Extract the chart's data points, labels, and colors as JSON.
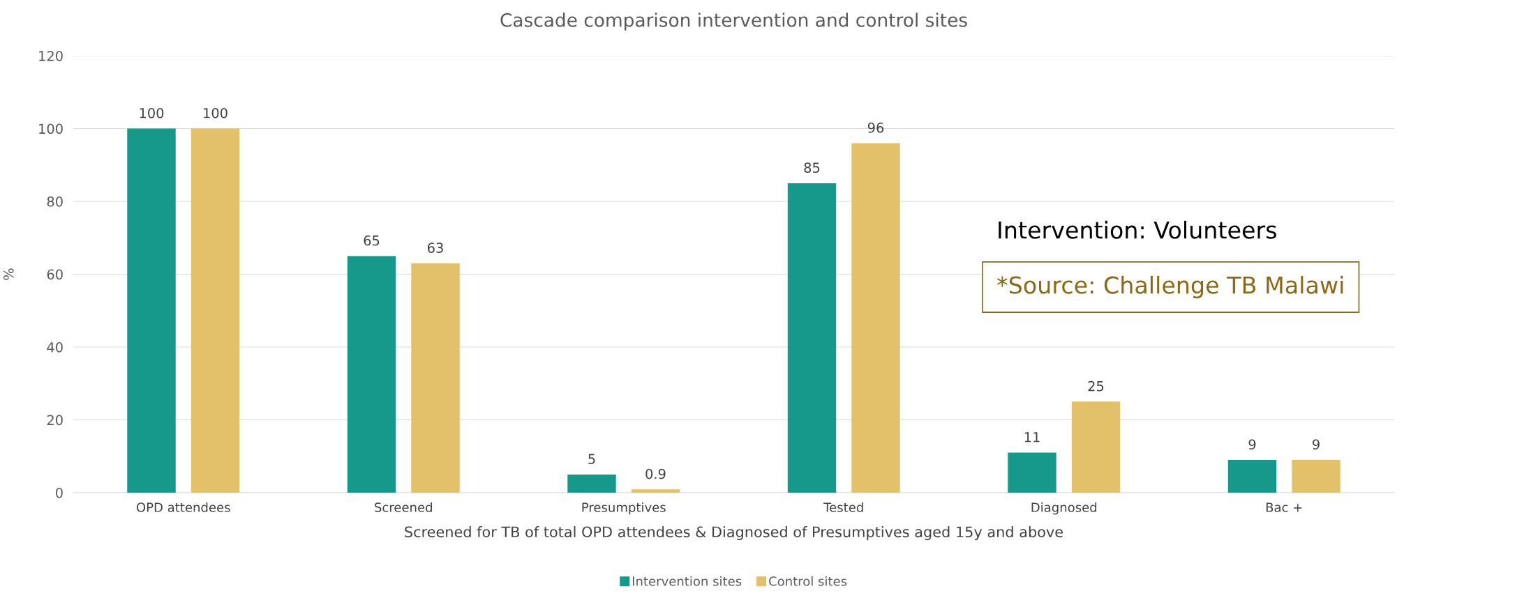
{
  "chart_data": {
    "type": "bar",
    "title": "Cascade comparison intervention and control sites",
    "xlabel": "Screened for TB of total OPD attendees & Diagnosed of Presumptives aged 15y and above",
    "ylabel": "%",
    "categories": [
      "OPD attendees",
      "Screened",
      "Presumptives",
      "Tested",
      "Diagnosed",
      "Bac +"
    ],
    "series": [
      {
        "name": "Intervention sites",
        "color": "#16998a",
        "values": [
          100,
          65,
          5,
          85,
          11,
          9
        ]
      },
      {
        "name": "Control sites",
        "color": "#e3c06a",
        "values": [
          100,
          63,
          0.9,
          96,
          25,
          9
        ]
      }
    ],
    "ylim": [
      0,
      120
    ],
    "yticks": [
      0,
      20,
      40,
      60,
      80,
      100,
      120
    ],
    "grid": "y",
    "legend": "bottom",
    "data_labels": true,
    "annotations": [
      "Intervention: Volunteers",
      "*Source: Challenge TB Malawi"
    ]
  }
}
